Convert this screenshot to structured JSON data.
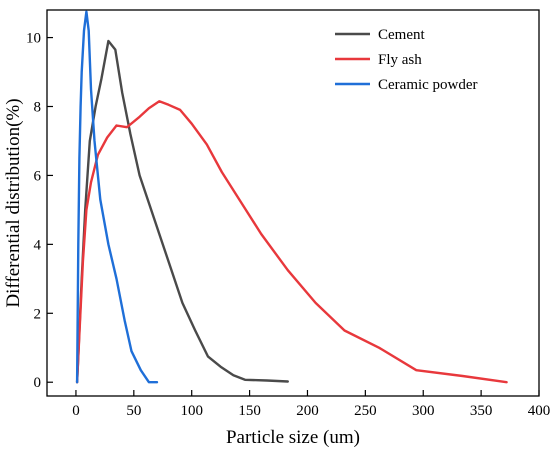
{
  "chart_data": {
    "type": "line",
    "xlabel": "Particle size (um)",
    "ylabel": "Differential distribution(%)",
    "xlim": [
      -25,
      400
    ],
    "ylim": [
      -0.4,
      10.8
    ],
    "xticks": [
      0,
      50,
      100,
      150,
      200,
      250,
      300,
      350,
      400
    ],
    "yticks": [
      0,
      2,
      4,
      6,
      8,
      10
    ],
    "grid": false,
    "legend_position": "top-right",
    "series": [
      {
        "name": "Cement",
        "color": "#4a4a4a",
        "x": [
          1,
          3,
          5,
          8,
          12,
          17,
          22,
          28,
          34,
          40,
          47,
          55,
          63,
          72,
          82,
          92,
          103,
          114,
          125,
          136,
          146,
          165,
          183
        ],
        "y": [
          0,
          1.5,
          3.0,
          5.0,
          7.0,
          8.0,
          8.8,
          9.9,
          9.65,
          8.4,
          7.2,
          6.0,
          5.2,
          4.3,
          3.3,
          2.3,
          1.5,
          0.75,
          0.45,
          0.2,
          0.07,
          0.05,
          0.02
        ]
      },
      {
        "name": "Fly ash",
        "color": "#e8383c",
        "x": [
          1,
          3,
          6,
          9,
          13,
          19,
          27,
          35,
          44,
          55,
          63,
          72,
          80,
          90,
          100,
          113,
          126,
          143,
          160,
          183,
          207,
          232,
          262,
          294,
          334,
          372
        ],
        "y": [
          0,
          1.4,
          3.5,
          5.0,
          5.8,
          6.6,
          7.1,
          7.45,
          7.4,
          7.7,
          7.95,
          8.15,
          8.05,
          7.9,
          7.5,
          6.9,
          6.1,
          5.2,
          4.3,
          3.25,
          2.3,
          1.5,
          1.0,
          0.35,
          0.18,
          0.0
        ]
      },
      {
        "name": "Ceramic powder",
        "color": "#1f6fd8",
        "x": [
          1,
          2,
          3,
          4,
          5,
          7,
          9,
          11,
          13,
          16,
          21,
          28,
          35,
          42,
          48,
          56,
          63,
          70
        ],
        "y": [
          0,
          4.0,
          6.5,
          8.0,
          9.0,
          10.2,
          10.75,
          10.2,
          8.5,
          7.0,
          5.3,
          4.0,
          3.0,
          1.8,
          0.9,
          0.35,
          0.0,
          0.0
        ]
      }
    ]
  }
}
